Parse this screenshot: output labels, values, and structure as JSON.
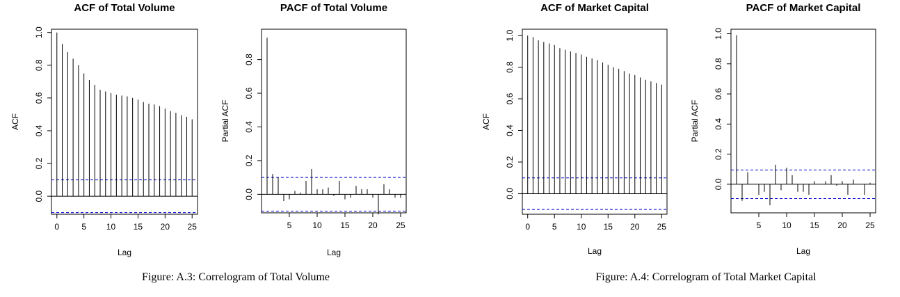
{
  "figures": [
    {
      "caption": "Figure: A.3: Correlogram of Total Volume"
    },
    {
      "caption": "Figure: A.4: Correlogram of Total Market Capital"
    }
  ],
  "chart_data": [
    {
      "type": "bar",
      "title": "ACF of Total Volume",
      "xlabel": "Lag",
      "ylabel": "ACF",
      "xlim": [
        -1,
        26
      ],
      "ylim": [
        -0.11,
        1.02
      ],
      "xticks": [
        0,
        5,
        10,
        15,
        20,
        25
      ],
      "yticks": [
        0.0,
        0.2,
        0.4,
        0.6,
        0.8,
        1.0
      ],
      "ytick_labels": [
        "0.0",
        "0.2",
        "0.4",
        "0.6",
        "0.8",
        "1.0"
      ],
      "x": [
        0,
        1,
        2,
        3,
        4,
        5,
        6,
        7,
        8,
        9,
        10,
        11,
        12,
        13,
        14,
        15,
        16,
        17,
        18,
        19,
        20,
        21,
        22,
        23,
        24,
        25
      ],
      "values": [
        1.0,
        0.93,
        0.88,
        0.84,
        0.8,
        0.75,
        0.71,
        0.68,
        0.65,
        0.64,
        0.63,
        0.62,
        0.615,
        0.61,
        0.6,
        0.59,
        0.575,
        0.565,
        0.56,
        0.55,
        0.535,
        0.52,
        0.51,
        0.495,
        0.485,
        0.47
      ],
      "confidence_bounds": [
        0.1,
        -0.1
      ],
      "grid": false,
      "colors": {
        "bars": "#000000",
        "bounds": "#0000cd"
      }
    },
    {
      "type": "bar",
      "title": "PACF of Total Volume",
      "xlabel": "Lag",
      "ylabel": "Partial ACF",
      "xlim": [
        0,
        26
      ],
      "ylim": [
        -0.11,
        0.98
      ],
      "xticks": [
        5,
        10,
        15,
        20,
        25
      ],
      "yticks": [
        0.0,
        0.2,
        0.4,
        0.6,
        0.8
      ],
      "ytick_labels": [
        "0.0",
        "0.2",
        "0.4",
        "0.6",
        "0.8"
      ],
      "x": [
        1,
        2,
        3,
        4,
        5,
        6,
        7,
        8,
        9,
        10,
        11,
        12,
        13,
        14,
        15,
        16,
        17,
        18,
        19,
        20,
        21,
        22,
        23,
        24,
        25
      ],
      "values": [
        0.93,
        0.12,
        0.1,
        -0.04,
        -0.03,
        0.02,
        0.01,
        0.08,
        0.15,
        0.03,
        0.03,
        0.04,
        -0.01,
        0.08,
        -0.03,
        -0.02,
        0.05,
        0.03,
        0.03,
        -0.02,
        -0.12,
        0.06,
        0.03,
        -0.02,
        -0.02
      ],
      "confidence_bounds": [
        0.1,
        -0.1
      ],
      "grid": false,
      "colors": {
        "bars": "#000000",
        "bounds": "#0000cd"
      }
    },
    {
      "type": "bar",
      "title": "ACF of Market Capital",
      "xlabel": "Lag",
      "ylabel": "ACF",
      "xlim": [
        -1,
        26
      ],
      "ylim": [
        -0.13,
        1.04
      ],
      "xticks": [
        0,
        5,
        10,
        15,
        20,
        25
      ],
      "yticks": [
        0.0,
        0.2,
        0.4,
        0.6,
        0.8,
        1.0
      ],
      "ytick_labels": [
        "0.0",
        "0.2",
        "0.4",
        "0.6",
        "0.8",
        "1.0"
      ],
      "x": [
        0,
        1,
        2,
        3,
        4,
        5,
        6,
        7,
        8,
        9,
        10,
        11,
        12,
        13,
        14,
        15,
        16,
        17,
        18,
        19,
        20,
        21,
        22,
        23,
        24,
        25
      ],
      "values": [
        1.0,
        0.99,
        0.97,
        0.96,
        0.95,
        0.94,
        0.92,
        0.91,
        0.9,
        0.89,
        0.88,
        0.865,
        0.855,
        0.845,
        0.83,
        0.815,
        0.8,
        0.79,
        0.775,
        0.76,
        0.75,
        0.735,
        0.72,
        0.71,
        0.7,
        0.69
      ],
      "confidence_bounds": [
        0.1,
        -0.1
      ],
      "grid": false,
      "colors": {
        "bars": "#000000",
        "bounds": "#0000cd"
      }
    },
    {
      "type": "bar",
      "title": "PACF of Market Capital",
      "xlabel": "Lag",
      "ylabel": "Partial ACF",
      "xlim": [
        0,
        26
      ],
      "ylim": [
        -0.19,
        1.03
      ],
      "xticks": [
        5,
        10,
        15,
        20,
        25
      ],
      "yticks": [
        0.0,
        0.2,
        0.4,
        0.6,
        0.8,
        1.0
      ],
      "ytick_labels": [
        "0.0",
        "0.2",
        "0.4",
        "0.6",
        "0.8",
        "1.0"
      ],
      "x": [
        1,
        2,
        3,
        4,
        5,
        6,
        7,
        8,
        9,
        10,
        11,
        12,
        13,
        14,
        15,
        16,
        17,
        18,
        19,
        20,
        21,
        22,
        23,
        24,
        25
      ],
      "values": [
        0.99,
        -0.11,
        0.08,
        0.0,
        -0.07,
        -0.05,
        -0.14,
        0.13,
        -0.04,
        0.11,
        0.06,
        -0.05,
        -0.05,
        -0.07,
        0.02,
        0.0,
        0.02,
        0.06,
        -0.01,
        0.02,
        -0.07,
        0.03,
        0.0,
        -0.07,
        0.01
      ],
      "confidence_bounds": [
        0.095,
        -0.095
      ],
      "grid": false,
      "colors": {
        "bars": "#000000",
        "bounds": "#0000cd"
      }
    }
  ]
}
